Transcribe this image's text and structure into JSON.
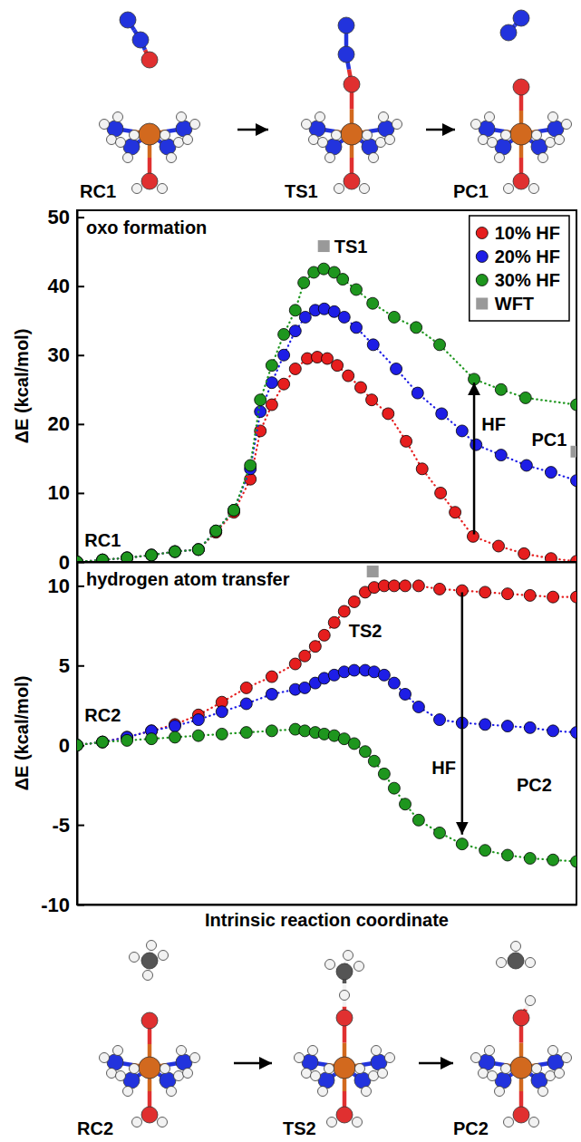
{
  "chart_data": [
    {
      "type": "line",
      "title": "oxo formation",
      "y_label": "ΔE (kcal/mol)",
      "xlim": [
        0,
        100
      ],
      "xticks": [],
      "ylim": [
        0,
        51
      ],
      "yticks": [
        0,
        10,
        20,
        30,
        40,
        50
      ],
      "tick_labels": "y",
      "legend": "top-right",
      "marker": "circle",
      "line_style": "dotted",
      "series": [
        {
          "name": "10% HF",
          "color": "#e61e1e",
          "x": [
            0,
            5.1,
            10.0,
            14.9,
            19.6,
            24.3,
            27.8,
            31.4,
            34.7,
            36.7,
            39.0,
            41.4,
            43.7,
            46.1,
            48.1,
            50.1,
            52.1,
            54.3,
            56.8,
            59.0,
            62.3,
            65.9,
            69.1,
            72.8,
            75.7,
            79.3,
            84.4,
            89.5,
            94.9,
            100
          ],
          "values": [
            0,
            0.3,
            0.6,
            1.0,
            1.5,
            1.8,
            4.3,
            7.2,
            12.0,
            19.0,
            22.8,
            25.8,
            28.0,
            29.5,
            29.7,
            29.5,
            28.5,
            27.0,
            25.3,
            23.5,
            21.5,
            17.5,
            13.5,
            10.0,
            7.2,
            3.7,
            2.3,
            1.2,
            0.5,
            0.1
          ]
        },
        {
          "name": "20% HF",
          "color": "#1e1ee6",
          "x": [
            0,
            5.1,
            10.0,
            14.9,
            19.6,
            24.3,
            27.8,
            31.4,
            34.7,
            36.7,
            39.0,
            41.4,
            43.7,
            45.7,
            47.7,
            49.5,
            51.5,
            53.5,
            55.9,
            59.3,
            63.9,
            68.2,
            73.0,
            77.1,
            79.9,
            84.9,
            90.0,
            94.9,
            100
          ],
          "values": [
            0,
            0.3,
            0.6,
            1.0,
            1.5,
            1.8,
            4.5,
            7.5,
            13.5,
            21.8,
            26.0,
            30.0,
            33.5,
            35.5,
            36.5,
            36.7,
            36.3,
            35.5,
            34.0,
            31.5,
            28.0,
            24.5,
            21.5,
            19.0,
            17.0,
            15.5,
            14.0,
            13.0,
            11.8
          ]
        },
        {
          "name": "30% HF",
          "color": "#1e961e",
          "x": [
            0,
            5.1,
            10.0,
            14.9,
            19.6,
            24.3,
            27.8,
            31.4,
            34.7,
            36.7,
            39.0,
            41.4,
            43.7,
            45.4,
            47.4,
            49.4,
            51.5,
            53.2,
            55.9,
            59.2,
            63.5,
            67.9,
            72.6,
            79.5,
            84.9,
            89.8,
            100
          ],
          "values": [
            0,
            0.3,
            0.6,
            1.0,
            1.5,
            1.8,
            4.5,
            7.5,
            14.0,
            23.5,
            28.5,
            33.0,
            36.5,
            40.5,
            42.0,
            42.5,
            42.0,
            41.0,
            39.5,
            37.5,
            35.5,
            34.0,
            31.5,
            26.5,
            25.0,
            23.8,
            22.8
          ]
        },
        {
          "name": "WFT",
          "color": "#999999",
          "type": "scatter",
          "marker": "square",
          "x": [
            49.4,
            100
          ],
          "values": [
            45.8,
            16
          ]
        }
      ],
      "annotations": [
        {
          "text": "TS1",
          "x": 51.5,
          "y": 45.8
        },
        {
          "text": "RC1",
          "x": 1.5,
          "y": 3.2
        },
        {
          "text": "PC1",
          "x": 91,
          "y": 17.8
        },
        {
          "text": "HF",
          "x": 81,
          "y": 20
        }
      ],
      "arrows": [
        {
          "x": 79.5,
          "from": 4,
          "to": 26
        }
      ],
      "structures": [
        "RC1",
        "TS1",
        "PC1"
      ]
    },
    {
      "type": "line",
      "title": "hydrogen atom transfer",
      "x_label": "Intrinsic reaction coordinate",
      "y_label": "ΔE (kcal/mol)",
      "xlim": [
        0,
        100
      ],
      "xticks": [],
      "ylim": [
        -10,
        11.5
      ],
      "yticks": [
        -10,
        -5,
        0,
        5,
        10
      ],
      "tick_labels": "y",
      "marker": "circle",
      "line_style": "dotted",
      "series": [
        {
          "color": "#e61e1e",
          "x": [
            0,
            5.1,
            10.0,
            14.9,
            19.6,
            24.3,
            29.0,
            33.9,
            39.0,
            43.7,
            45.6,
            47.7,
            49.5,
            51.5,
            53.5,
            55.5,
            57.7,
            59.5,
            61.5,
            63.5,
            65.7,
            68.4,
            72.6,
            77.1,
            81.7,
            86.2,
            90.7,
            95.3,
            100
          ],
          "values": [
            0,
            0.2,
            0.5,
            0.9,
            1.3,
            1.9,
            2.7,
            3.6,
            4.3,
            5.1,
            5.6,
            6.2,
            6.9,
            7.7,
            8.4,
            9.0,
            9.6,
            9.9,
            10.0,
            10.0,
            10.0,
            10.0,
            9.8,
            9.7,
            9.6,
            9.5,
            9.4,
            9.3,
            9.3
          ]
        },
        {
          "color": "#1e1ee6",
          "x": [
            0,
            5.1,
            10.0,
            14.9,
            19.6,
            24.3,
            29.0,
            33.9,
            39.0,
            43.7,
            45.6,
            47.7,
            49.5,
            51.5,
            53.5,
            55.5,
            57.7,
            59.5,
            61.5,
            63.5,
            65.7,
            68.4,
            72.6,
            77.1,
            81.7,
            86.2,
            90.7,
            95.3,
            100
          ],
          "values": [
            0,
            0.2,
            0.5,
            0.9,
            1.2,
            1.6,
            2.1,
            2.6,
            3.2,
            3.5,
            3.6,
            3.9,
            4.2,
            4.4,
            4.6,
            4.7,
            4.7,
            4.6,
            4.4,
            3.9,
            3.2,
            2.4,
            1.6,
            1.4,
            1.3,
            1.2,
            1.1,
            0.9,
            0.8
          ]
        },
        {
          "color": "#1e961e",
          "x": [
            0,
            5.1,
            10.0,
            14.9,
            19.6,
            24.3,
            29.0,
            33.9,
            39.0,
            43.7,
            45.6,
            47.7,
            49.5,
            51.5,
            53.5,
            55.5,
            57.7,
            59.5,
            61.5,
            63.5,
            65.7,
            68.4,
            72.6,
            77.1,
            81.7,
            86.2,
            90.7,
            95.3,
            100
          ],
          "values": [
            0,
            0.2,
            0.3,
            0.4,
            0.5,
            0.6,
            0.7,
            0.8,
            0.9,
            1.0,
            0.9,
            0.8,
            0.7,
            0.6,
            0.4,
            0.1,
            -0.4,
            -1.0,
            -1.8,
            -2.7,
            -3.7,
            -4.7,
            -5.5,
            -6.2,
            -6.6,
            -6.9,
            -7.1,
            -7.2,
            -7.3
          ]
        },
        {
          "color": "#999999",
          "type": "scatter",
          "marker": "square",
          "x": [
            59.2
          ],
          "values": [
            10.9
          ]
        }
      ],
      "annotations": [
        {
          "text": "TS2",
          "x": 54.4,
          "y": 7.2
        },
        {
          "text": "RC2",
          "x": 1.5,
          "y": 1.9
        },
        {
          "text": "PC2",
          "x": 88,
          "y": -2.5
        },
        {
          "text": "HF",
          "x": 71,
          "y": -1.4
        }
      ],
      "arrows": [
        {
          "x": 77.1,
          "from": 9.6,
          "to": -5.6
        }
      ],
      "structures": [
        "RC2",
        "TS2",
        "PC2"
      ]
    }
  ]
}
